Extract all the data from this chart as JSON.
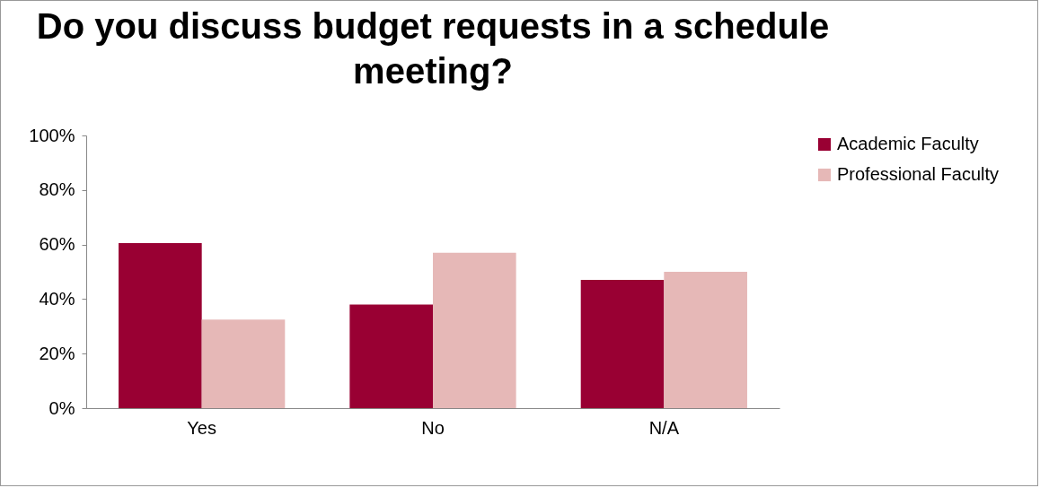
{
  "chart_data": {
    "type": "bar",
    "title": "Do you discuss budget requests in a schedule meeting?",
    "categories": [
      "Yes",
      "No",
      "N/A"
    ],
    "series": [
      {
        "name": "Academic Faculty",
        "color": "#990033",
        "values": [
          60.5,
          38,
          47
        ]
      },
      {
        "name": "Professional Faculty",
        "color": "#e6b8b7",
        "values": [
          32.5,
          57,
          50
        ]
      }
    ],
    "ylim": [
      0,
      100
    ],
    "yticks": [
      {
        "value": 0,
        "label": "0%"
      },
      {
        "value": 20,
        "label": "20%"
      },
      {
        "value": 40,
        "label": "40%"
      },
      {
        "value": 60,
        "label": "60%"
      },
      {
        "value": 80,
        "label": "80%"
      },
      {
        "value": 100,
        "label": "100%"
      }
    ],
    "grid": false,
    "legend": "right"
  }
}
